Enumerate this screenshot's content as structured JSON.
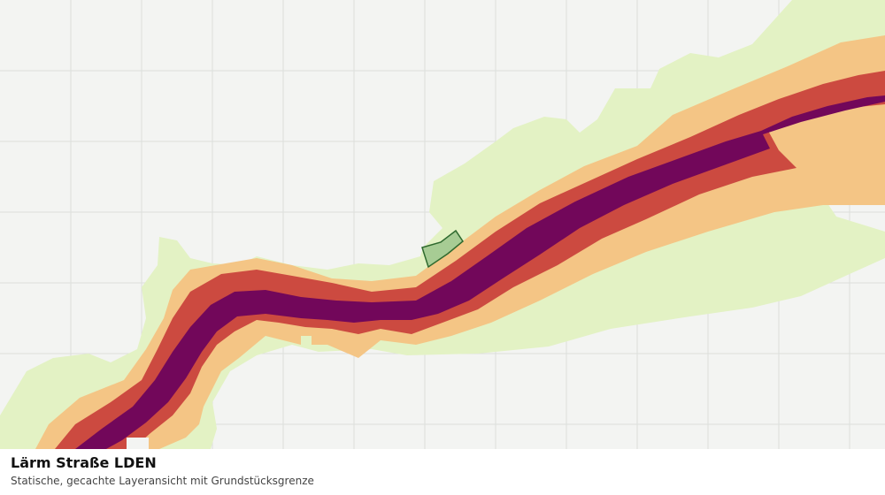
{
  "legend": {
    "title": "Lärm Straße LDEN",
    "subtitle": "Statische, gecachte Layeransicht mit Grundstücksgrenze"
  },
  "layers": {
    "noise_bands": [
      {
        "name": "outer",
        "color": "#e3f2c4"
      },
      {
        "name": "medium",
        "color": "#f4c585"
      },
      {
        "name": "high",
        "color": "#cc4a40"
      },
      {
        "name": "very-high",
        "color": "#72075a"
      }
    ],
    "parcel": {
      "fill": "#9cc58c",
      "stroke": "#2f6a2f"
    },
    "grid": {
      "color": "#dcdedb",
      "visible": true
    }
  }
}
